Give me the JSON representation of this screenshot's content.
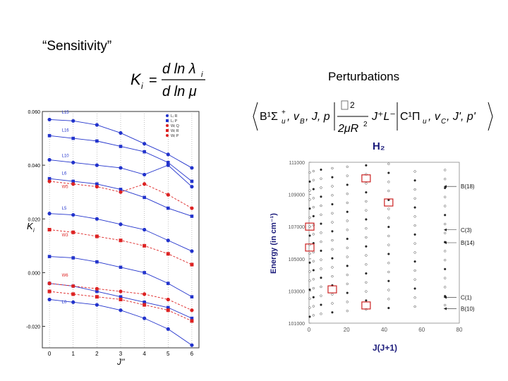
{
  "slide": {
    "title": "“Sensitivity”",
    "perturbations_label": "Perturbations"
  },
  "formula": {
    "lhs": "K",
    "lhs_sub": "i",
    "eq": "=",
    "num": "d ln λ",
    "num_sub": "i",
    "den": "d ln μ"
  },
  "matrix_element": {
    "bra": "B¹Σ",
    "bra_sup": "+",
    "bra_sub": "u",
    "bra_rest": ", v",
    "bra_v_sub": "B",
    "bra_tail": ", J, p",
    "hbar_sq": "2",
    "den": "2μR",
    "den_sup": "2",
    "ops": "J⁺L⁻",
    "ket": "C¹Π",
    "ket_sub": "u",
    "ket_rest": ", v",
    "ket_v_sub": "C",
    "ket_tail": ", J', p'"
  },
  "chart_data": [
    {
      "type": "line",
      "title": "",
      "xlabel": "J''",
      "ylabel": "K",
      "ylabel_sub": "i",
      "x": [
        0,
        1,
        2,
        3,
        4,
        5,
        6
      ],
      "xticks": [
        "0",
        "1",
        "2",
        "3",
        "4",
        "5",
        "6"
      ],
      "ylim": [
        -0.028,
        0.06
      ],
      "yticks": [
        "0.060",
        "0.040",
        "0.020",
        "0.000",
        "-0.020"
      ],
      "ytick_values": [
        0.06,
        0.04,
        0.02,
        0.0,
        -0.02
      ],
      "legend": [
        "Lᵢ R",
        "Lᵢ P",
        "Wᵢ Q",
        "Wᵢ R",
        "Wᵢ P"
      ],
      "legend_position": "top-right",
      "colors": {
        "lyman": "#2233cc",
        "werner": "#dd2222"
      },
      "annotations": [
        "L15",
        "L16",
        "L10",
        "L6",
        "W5",
        "L5",
        "W3",
        "W6",
        "L0"
      ],
      "series": [
        {
          "family": "lyman",
          "values": [
            0.057,
            0.0565,
            0.055,
            0.052,
            0.048,
            0.044,
            0.039
          ]
        },
        {
          "family": "lyman",
          "values": [
            0.051,
            0.05,
            0.049,
            0.047,
            0.045,
            0.041,
            0.034
          ]
        },
        {
          "family": "lyman",
          "values": [
            0.042,
            0.041,
            0.04,
            0.039,
            0.0365,
            0.04,
            0.032
          ]
        },
        {
          "family": "lyman",
          "values": [
            0.035,
            0.034,
            0.033,
            0.031,
            0.028,
            0.024,
            0.021
          ]
        },
        {
          "family": "lyman",
          "values": [
            0.022,
            0.0215,
            0.02,
            0.018,
            0.016,
            0.012,
            0.008
          ]
        },
        {
          "family": "lyman",
          "values": [
            0.006,
            0.0055,
            0.004,
            0.002,
            0.0,
            -0.004,
            -0.009
          ]
        },
        {
          "family": "lyman",
          "values": [
            -0.01,
            -0.011,
            -0.012,
            -0.014,
            -0.017,
            -0.021,
            -0.027
          ]
        },
        {
          "family": "lyman",
          "values": [
            -0.004,
            -0.005,
            -0.007,
            -0.009,
            -0.011,
            -0.013,
            -0.017
          ]
        },
        {
          "family": "werner",
          "values": [
            0.034,
            0.033,
            0.032,
            0.03,
            0.033,
            0.029,
            0.024
          ]
        },
        {
          "family": "werner",
          "values": [
            0.016,
            0.015,
            0.0135,
            0.012,
            0.01,
            0.007,
            0.003
          ]
        },
        {
          "family": "werner",
          "values": [
            -0.004,
            -0.005,
            -0.006,
            -0.007,
            -0.008,
            -0.01,
            -0.014
          ]
        },
        {
          "family": "werner",
          "values": [
            -0.007,
            -0.008,
            -0.009,
            -0.01,
            -0.012,
            -0.014,
            -0.018
          ]
        }
      ]
    },
    {
      "type": "scatter",
      "title": "H₂",
      "xlabel": "J(J+1)",
      "ylabel": "Energy (in cm⁻¹)",
      "xlim": [
        0,
        80
      ],
      "xticks": [
        "0",
        "20",
        "40",
        "60",
        "80"
      ],
      "ylim": [
        101000,
        111000
      ],
      "yticks": [
        "111000",
        "109000",
        "107000",
        "105000",
        "103000",
        "101000"
      ],
      "level_labels": [
        "B(18)",
        "C(3)",
        "B(14)",
        "C(1)",
        "B(10)"
      ],
      "highlight_color": "#cc2222",
      "axis_label_color": "#1a1a7a"
    }
  ]
}
